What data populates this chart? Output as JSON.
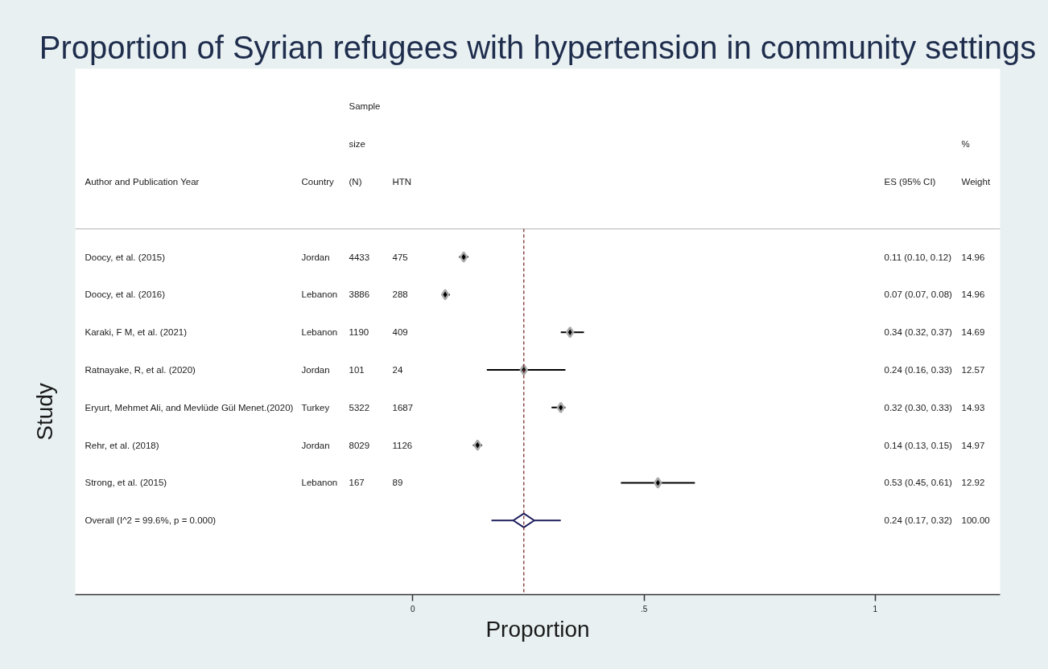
{
  "chart_data": {
    "type": "scatter",
    "orientation": "horizontal",
    "title": "Proportion of Syrian refugees with hypertension in community settings",
    "xlabel": "Proportion",
    "ylabel": "Study",
    "categories": [
      "Doocy, et al. (2015)",
      "Doocy, et al. (2016)",
      "Karaki, F M, et al. (2021)",
      "Ratnayake, R, et al. (2020)",
      "Eryurt, Mehmet Ali, and Mevlüde Gül Menet.(2020)",
      "Rehr, et al. (2018)",
      "Strong, et al. (2015)",
      "Overall (I^2 = 99.6%, p = 0.000)"
    ],
    "series": [
      {
        "color": "#000000",
        "marker": "diamond",
        "values": [
          0.11,
          0.07,
          0.34,
          0.24,
          0.32,
          0.14,
          0.53,
          null
        ],
        "errors": [
          [
            0.1,
            0.12
          ],
          [
            0.07,
            0.08
          ],
          [
            0.32,
            0.37
          ],
          [
            0.16,
            0.33
          ],
          [
            0.3,
            0.33
          ],
          [
            0.13,
            0.15
          ],
          [
            0.45,
            0.61
          ],
          null
        ]
      },
      {
        "color": "#1b1b5c",
        "marker": "diamond",
        "values": [
          null,
          null,
          null,
          null,
          null,
          null,
          null,
          0.24
        ],
        "errors": [
          null,
          null,
          null,
          null,
          null,
          null,
          null,
          [
            0.17,
            0.32
          ]
        ]
      }
    ],
    "xlim": [
      -0.73,
      1.27
    ],
    "xticks": [
      0,
      {
        "value": 0.5,
        "label": ".5"
      },
      1
    ],
    "ref_lines": [
      {
        "axis": "x",
        "value": 0.24,
        "color": "#7a2e2e",
        "line_style": "dashed"
      }
    ],
    "annotations": [
      "Author and Publication Year",
      "Country\nJordan\nLebanon\nLebanon\nJordan\nTurkey\nJordan\nLebanon\n",
      "Sample\nsize\n(N)\n4433\n3886\n1190\n101\n5322\n8029\n167\n",
      "HTN\n475\n288\n409\n24\n1687\n1126\n89\n",
      "ES (95% CI)\n0.11 (0.10, 0.12)\n0.07 (0.07, 0.08)\n0.34 (0.32, 0.37)\n0.24 (0.16, 0.33)\n0.32 (0.30, 0.33)\n0.14 (0.13, 0.15)\n0.53 (0.45, 0.61)\n0.24 (0.17, 0.32)",
      "%\nWeight\n14.96\n14.96\n14.69\n12.57\n14.93\n14.97\n12.92\n100.00"
    ]
  }
}
